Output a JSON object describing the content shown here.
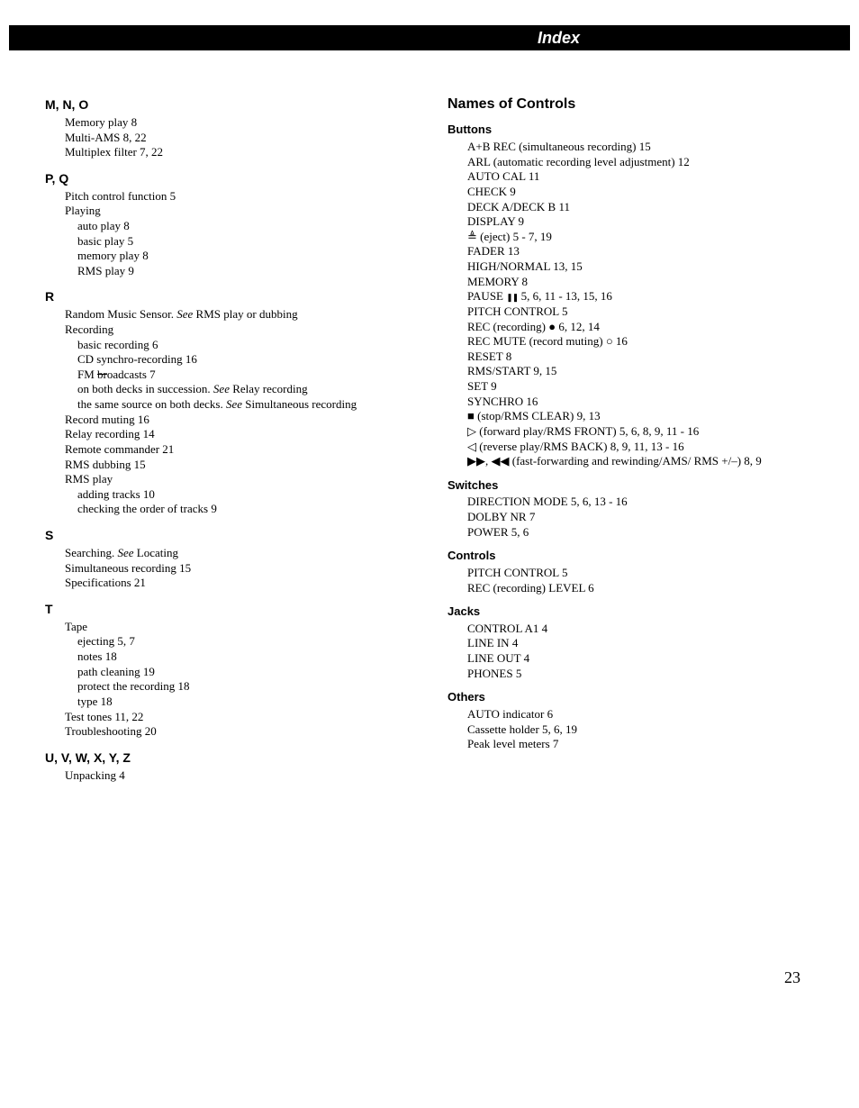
{
  "header": {
    "title": "Index"
  },
  "page_number": "23",
  "left": {
    "sections": [
      {
        "heading": "M, N, O",
        "entries": [
          {
            "text": "Memory play  8"
          },
          {
            "text": "Multi-AMS  8, 22"
          },
          {
            "text": "Multiplex filter  7, 22"
          }
        ]
      },
      {
        "heading": "P, Q",
        "entries": [
          {
            "text": "Pitch control function  5"
          },
          {
            "text": "Playing"
          },
          {
            "text": "auto play  8",
            "sub": true
          },
          {
            "text": "basic play  5",
            "sub": true
          },
          {
            "text": "memory play  8",
            "sub": true
          },
          {
            "text": "RMS play  9",
            "sub": true
          }
        ]
      },
      {
        "heading": "R",
        "entries": [
          {
            "pre": "Random Music Sensor.  ",
            "italic": "See",
            "post": " RMS play or dubbing"
          },
          {
            "text": "Recording"
          },
          {
            "text": "basic recording  6",
            "sub": true
          },
          {
            "text": "CD synchro-recording  16",
            "sub": true
          },
          {
            "pre": "FM ",
            "strike": "br",
            "post": "oadcasts  7",
            "sub": true
          },
          {
            "pre": "on both decks in succession.  ",
            "italic": "See",
            "post": " Relay recording",
            "sub": true
          },
          {
            "pre": "the same source on both decks.  ",
            "italic": "See",
            "post": " Simultaneous recording",
            "sub": true
          },
          {
            "text": "Record muting  16"
          },
          {
            "text": "Relay recording  14"
          },
          {
            "text": "Remote commander  21"
          },
          {
            "text": "RMS dubbing  15"
          },
          {
            "text": "RMS play"
          },
          {
            "text": "adding tracks  10",
            "sub": true
          },
          {
            "text": "checking the order of tracks  9",
            "sub": true
          }
        ]
      },
      {
        "heading": "S",
        "entries": [
          {
            "pre": "Searching.  ",
            "italic": "See",
            "post": " Locating"
          },
          {
            "text": "Simultaneous recording  15"
          },
          {
            "text": "Specifications  21"
          }
        ]
      },
      {
        "heading": "T",
        "entries": [
          {
            "text": "Tape"
          },
          {
            "text": "ejecting  5, 7",
            "sub": true
          },
          {
            "text": "notes  18",
            "sub": true
          },
          {
            "text": "path cleaning  19",
            "sub": true
          },
          {
            "text": "protect the recording  18",
            "sub": true
          },
          {
            "text": "type  18",
            "sub": true
          },
          {
            "text": "Test tones  11, 22"
          },
          {
            "text": "Troubleshooting  20"
          }
        ]
      },
      {
        "heading": "U, V, W, X, Y, Z",
        "entries": [
          {
            "text": "Unpacking  4"
          }
        ]
      }
    ]
  },
  "right": {
    "title": "Names of Controls",
    "sections": [
      {
        "heading": "Buttons",
        "entries": [
          {
            "text": "A+B REC (simultaneous recording)  15"
          },
          {
            "text": "ARL (automatic recording level adjustment)  12"
          },
          {
            "text": "AUTO CAL  11"
          },
          {
            "text": "CHECK  9"
          },
          {
            "text": "DECK A/DECK B  11"
          },
          {
            "text": "DISPLAY  9"
          },
          {
            "icon": "eject",
            "post": " (eject)  5 - 7, 19"
          },
          {
            "text": "FADER  13"
          },
          {
            "text": "HIGH/NORMAL  13, 15"
          },
          {
            "text": "MEMORY  8"
          },
          {
            "pre": "PAUSE ",
            "icon": "pause",
            "post": "  5, 6, 11 - 13, 15, 16"
          },
          {
            "text": "PITCH CONTROL  5"
          },
          {
            "pre": "REC (recording) ",
            "icon": "rec",
            "post": "  6, 12, 14"
          },
          {
            "pre": "REC MUTE (record muting) ",
            "icon": "mute",
            "post": "  16"
          },
          {
            "text": "RESET  8"
          },
          {
            "text": "RMS/START  9, 15"
          },
          {
            "text": "SET  9"
          },
          {
            "text": "SYNCHRO  16"
          },
          {
            "icon": "stop",
            "post": " (stop/RMS CLEAR)  9, 13"
          },
          {
            "icon": "play",
            "post": " (forward play/RMS FRONT)  5, 6, 8, 9, 11 - 16"
          },
          {
            "icon": "playrev",
            "post": " (reverse play/RMS BACK)  8, 9, 11, 13 - 16"
          },
          {
            "icon": "ffrw",
            "post": " (fast-forwarding and rewinding/AMS/ RMS +/–)  8, 9"
          }
        ]
      },
      {
        "heading": "Switches",
        "entries": [
          {
            "text": "DIRECTION MODE  5, 6, 13 - 16"
          },
          {
            "text": "DOLBY NR  7"
          },
          {
            "text": "POWER  5, 6"
          }
        ]
      },
      {
        "heading": "Controls",
        "entries": [
          {
            "text": "PITCH CONTROL  5"
          },
          {
            "text": "REC (recording) LEVEL  6"
          }
        ]
      },
      {
        "heading": "Jacks",
        "entries": [
          {
            "text": "CONTROL A1  4"
          },
          {
            "text": "LINE IN  4"
          },
          {
            "text": "LINE OUT  4"
          },
          {
            "text": "PHONES  5"
          }
        ]
      },
      {
        "heading": "Others",
        "entries": [
          {
            "text": "AUTO indicator  6"
          },
          {
            "text": "Cassette holder  5, 6, 19"
          },
          {
            "text": "Peak level meters  7"
          }
        ]
      }
    ]
  },
  "icons": {
    "eject": "≜",
    "pause": "❚❚",
    "rec": "●",
    "mute": "○",
    "stop": "■",
    "play": "▷",
    "playrev": "◁",
    "ffrw_a": "▶▶",
    "ffrw_b": "◀◀"
  }
}
